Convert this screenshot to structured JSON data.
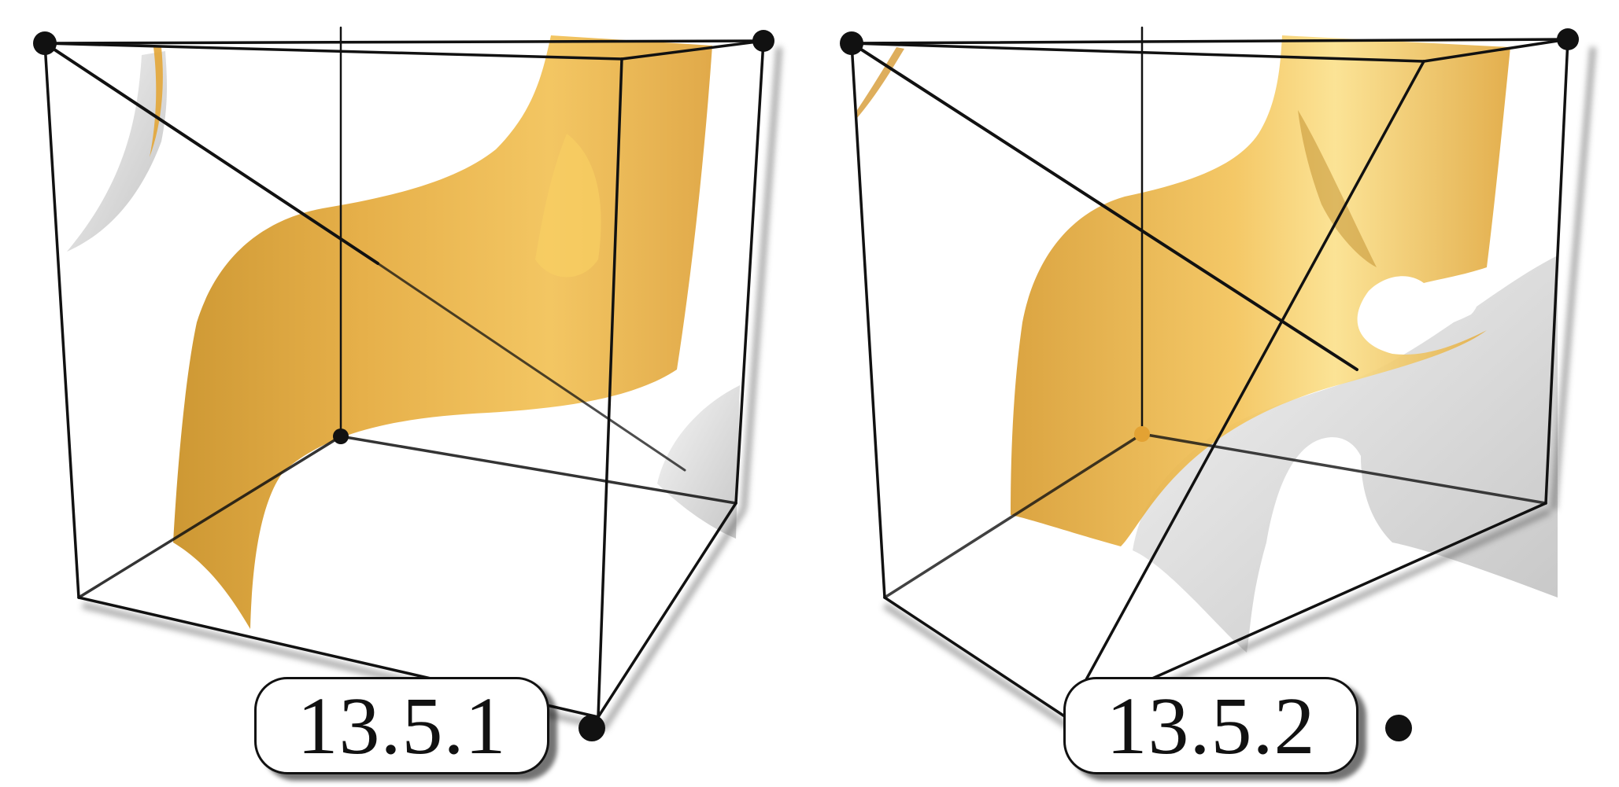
{
  "panels": [
    {
      "label": "13.5.1"
    },
    {
      "label": "13.5.2"
    }
  ],
  "colors": {
    "surface": "#e8ac3a",
    "surface_light": "#f6c75a",
    "surface_back": "#d9d9d9",
    "edge": "#111111",
    "background": "#ffffff"
  }
}
